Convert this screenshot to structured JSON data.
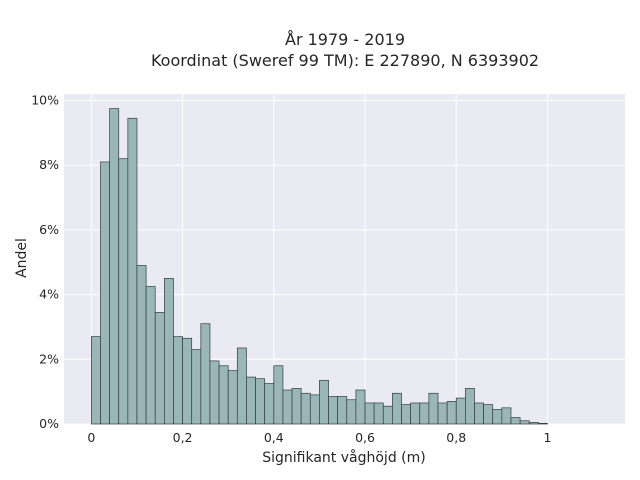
{
  "chart_data": {
    "type": "bar",
    "title_line1": "År 1979 - 2019",
    "title_line2": "Koordinat (Sweref 99 TM): E 227890, N 6393902",
    "xlabel": "Signifikant våghöjd (m)",
    "ylabel": "Andel",
    "xlim": [
      -0.06,
      1.17
    ],
    "ylim": [
      0,
      10.2
    ],
    "x_ticks": [
      {
        "value": 0,
        "label": "0"
      },
      {
        "value": 0.2,
        "label": "0,2"
      },
      {
        "value": 0.4,
        "label": "0,4"
      },
      {
        "value": 0.6,
        "label": "0,6"
      },
      {
        "value": 0.8,
        "label": "0,8"
      },
      {
        "value": 1,
        "label": "1"
      }
    ],
    "y_ticks": [
      {
        "value": 0,
        "label": "0%"
      },
      {
        "value": 2,
        "label": "2%"
      },
      {
        "value": 4,
        "label": "4%"
      },
      {
        "value": 6,
        "label": "6%"
      },
      {
        "value": 8,
        "label": "8%"
      },
      {
        "value": 10,
        "label": "10%"
      }
    ],
    "grid": true,
    "bin_width": 0.02,
    "bin_start": 0,
    "values": [
      2.7,
      8.1,
      9.75,
      8.2,
      9.45,
      4.9,
      4.25,
      3.45,
      4.5,
      2.7,
      2.65,
      2.3,
      3.1,
      1.95,
      1.8,
      1.65,
      2.35,
      1.45,
      1.4,
      1.25,
      1.8,
      1.05,
      1.1,
      0.95,
      0.9,
      1.35,
      0.85,
      0.85,
      0.75,
      1.05,
      0.65,
      0.65,
      0.55,
      0.95,
      0.6,
      0.65,
      0.65,
      0.95,
      0.65,
      0.7,
      0.8,
      1.1,
      0.65,
      0.6,
      0.45,
      0.5,
      0.2,
      0.1,
      0.05,
      0.02
    ],
    "colors": {
      "bar_fill": "#9ab6b6",
      "bar_edge": "#2f3f3f",
      "plot_bg": "#eaeaf2",
      "grid": "#ffffff"
    }
  }
}
